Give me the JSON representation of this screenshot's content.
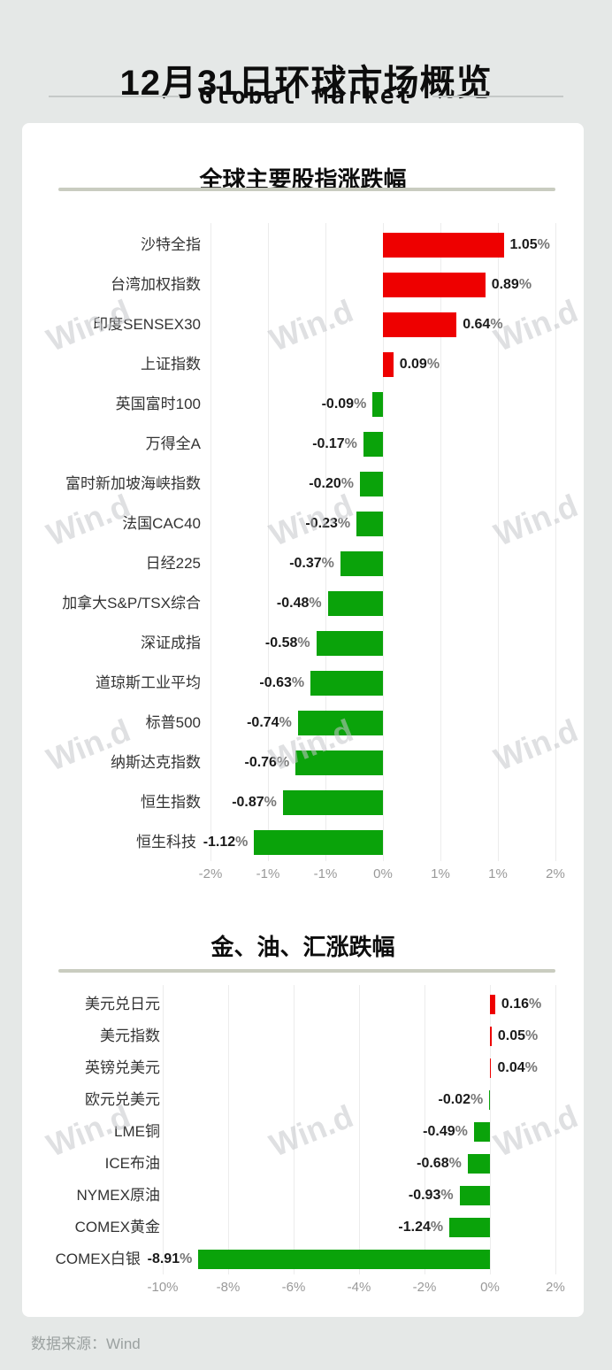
{
  "header": {
    "title": "12月31日环球市场概览",
    "subtitle": "Global Market"
  },
  "watermark": {
    "text": "Win.d"
  },
  "footer": {
    "source": "数据来源：Wind"
  },
  "colors": {
    "up": "#ee0000",
    "down": "#0aa30a",
    "page_bg": "#e5e8e7",
    "card_bg": "#ffffff",
    "divider": "#c9ccc0",
    "grid": "#ececec",
    "axis_text": "#999999",
    "category_text": "#333333",
    "value_text": "#1a1a1a"
  },
  "chart_data": [
    {
      "type": "bar",
      "orientation": "horizontal",
      "title": "全球主要股指涨跌幅",
      "value_unit": "%",
      "grid": true,
      "categories": [
        "沙特全指",
        "台湾加权指数",
        "印度SENSEX30",
        "上证指数",
        "英国富时100",
        "万得全A",
        "富时新加坡海峡指数",
        "法国CAC40",
        "日经225",
        "加拿大S&P/TSX综合",
        "深证成指",
        "道琼斯工业平均",
        "标普500",
        "纳斯达克指数",
        "恒生指数",
        "恒生科技"
      ],
      "values": [
        1.05,
        0.89,
        0.64,
        0.09,
        -0.09,
        -0.17,
        -0.2,
        -0.23,
        -0.37,
        -0.48,
        -0.58,
        -0.63,
        -0.74,
        -0.76,
        -0.87,
        -1.12
      ],
      "value_labels": [
        "1.05%",
        "0.89%",
        "0.64%",
        "0.09%",
        "-0.09%",
        "-0.17%",
        "-0.20%",
        "-0.23%",
        "-0.37%",
        "-0.48%",
        "-0.58%",
        "-0.63%",
        "-0.74%",
        "-0.76%",
        "-0.87%",
        "-1.12%"
      ],
      "axis": {
        "range": [
          -1.5,
          1.5
        ],
        "ticks": [
          -1.5,
          -1,
          -0.5,
          0,
          0.5,
          1,
          1.5
        ],
        "tick_labels": [
          "-2%",
          "-1%",
          "-1%",
          "0%",
          "1%",
          "1%",
          "2%"
        ]
      }
    },
    {
      "type": "bar",
      "orientation": "horizontal",
      "title": "金、油、汇涨跌幅",
      "value_unit": "%",
      "grid": true,
      "categories": [
        "美元兑日元",
        "美元指数",
        "英镑兑美元",
        "欧元兑美元",
        "LME铜",
        "ICE布油",
        "NYMEX原油",
        "COMEX黄金",
        "COMEX白银"
      ],
      "values": [
        0.16,
        0.05,
        0.04,
        -0.02,
        -0.49,
        -0.68,
        -0.93,
        -1.24,
        -8.91
      ],
      "value_labels": [
        "0.16%",
        "0.05%",
        "0.04%",
        "-0.02%",
        "-0.49%",
        "-0.68%",
        "-0.93%",
        "-1.24%",
        "-8.91%"
      ],
      "axis": {
        "range": [
          -10,
          2
        ],
        "ticks": [
          -10,
          -8,
          -6,
          -4,
          -2,
          0,
          2
        ],
        "tick_labels": [
          "-10%",
          "-8%",
          "-6%",
          "-4%",
          "-2%",
          "0%",
          "2%"
        ]
      }
    }
  ]
}
